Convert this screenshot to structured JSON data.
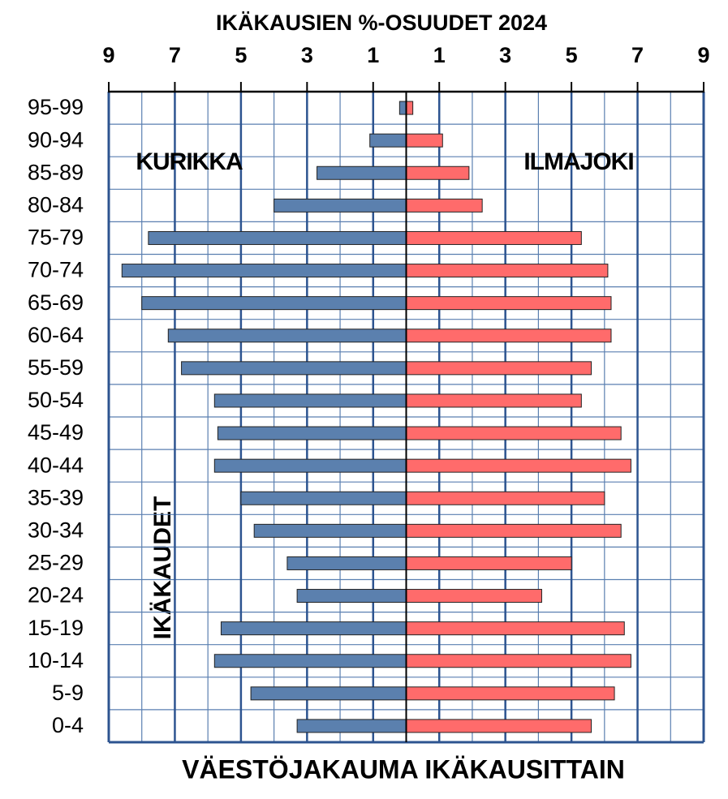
{
  "chart_data": {
    "type": "pyramid",
    "title": "IKÄKAUSIEN %-OSUUDET 2024",
    "xlabel": "VÄESTÖJAKAUMA IKÄKAUSITTAIN",
    "ylabel": "IKÄKAUDET",
    "categories": [
      "95-99",
      "90-94",
      "85-89",
      "80-84",
      "75-79",
      "70-74",
      "65-69",
      "60-64",
      "55-59",
      "50-54",
      "45-49",
      "40-44",
      "35-39",
      "30-34",
      "25-29",
      "20-24",
      "15-19",
      "10-14",
      "5-9",
      "0-4"
    ],
    "series": [
      {
        "name": "KURIKKA",
        "color": "#5b80ae",
        "values": [
          -0.2,
          -1.1,
          -2.7,
          -4.0,
          -7.8,
          -8.6,
          -8.0,
          -7.2,
          -6.8,
          -5.8,
          -5.7,
          -5.8,
          -5.0,
          -4.6,
          -3.6,
          -3.3,
          -5.6,
          -5.8,
          -4.7,
          -3.3
        ]
      },
      {
        "name": "ILMAJOKI",
        "color": "#ff6b6b",
        "values": [
          0.2,
          1.1,
          1.9,
          2.3,
          5.3,
          6.1,
          6.2,
          6.2,
          5.6,
          5.3,
          6.5,
          6.8,
          6.0,
          6.5,
          5.0,
          4.1,
          6.6,
          6.8,
          6.3,
          5.6
        ]
      }
    ],
    "xlim": [
      -9,
      9
    ],
    "xticks": [
      {
        "value": -9,
        "label": "9"
      },
      {
        "value": -7,
        "label": "7"
      },
      {
        "value": -5,
        "label": "5"
      },
      {
        "value": -3,
        "label": "3"
      },
      {
        "value": -1,
        "label": "1"
      },
      1,
      3,
      5,
      7,
      9
    ],
    "xminor": [
      -8,
      -6,
      -4,
      -2,
      0,
      2,
      4,
      6,
      8
    ],
    "grid": true
  }
}
